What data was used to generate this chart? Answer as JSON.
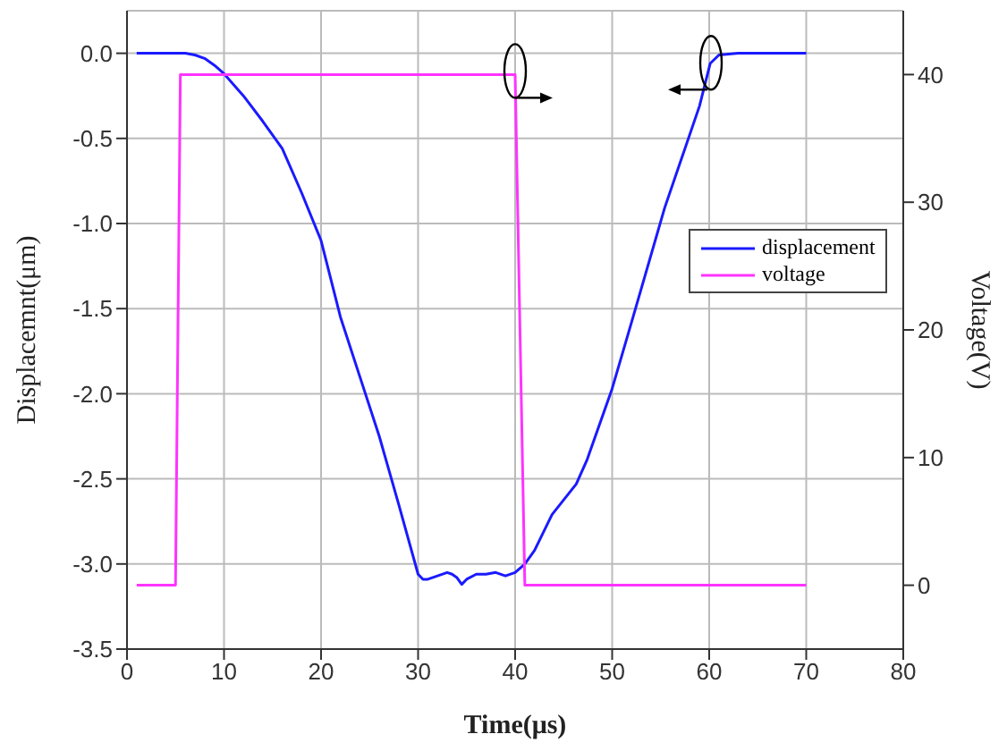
{
  "chart_data": {
    "type": "line",
    "xlabel": "Time(μs)",
    "ylabel": "Displacemnt(μm)",
    "y2label": "Voltage(V)",
    "xlim": [
      0,
      80
    ],
    "xticks": [
      0,
      10,
      20,
      30,
      40,
      50,
      60,
      70,
      80
    ],
    "ylim": [
      -3.5,
      0.25
    ],
    "yticks": [
      {
        "value": -3.5,
        "label": "-3.5"
      },
      {
        "value": -3,
        "label": "-3.0"
      },
      {
        "value": -2.5,
        "label": "-2.5"
      },
      {
        "value": -2,
        "label": "-2.0"
      },
      {
        "value": -1.5,
        "label": "-1.5"
      },
      {
        "value": -1,
        "label": "-1.0"
      },
      {
        "value": -0.5,
        "label": "-0.5"
      },
      {
        "value": 0,
        "label": "0.0"
      }
    ],
    "y2lim": [
      -5,
      45
    ],
    "y2ticks": [
      0,
      10,
      20,
      30,
      40
    ],
    "grid": true,
    "legend": "right",
    "marker": "none",
    "line_style": "solid",
    "series": [
      {
        "name": "displacement",
        "color": "#1a1aff",
        "x": [
          1,
          6,
          7,
          8,
          9,
          10,
          12,
          14,
          16,
          18,
          20,
          22,
          24,
          26,
          28,
          30,
          30.5,
          31,
          32,
          33,
          33.5,
          34,
          34.5,
          35,
          36,
          37,
          38,
          39,
          40,
          41,
          42,
          43.8,
          46.3,
          47.4,
          50,
          52,
          55.4,
          59,
          60.1,
          61,
          63,
          65,
          70
        ],
        "values": [
          0,
          0,
          -0.01,
          -0.03,
          -0.07,
          -0.12,
          -0.25,
          -0.4,
          -0.56,
          -0.82,
          -1.1,
          -1.55,
          -1.9,
          -2.25,
          -2.65,
          -3.06,
          -3.09,
          -3.09,
          -3.07,
          -3.05,
          -3.06,
          -3.08,
          -3.12,
          -3.09,
          -3.06,
          -3.06,
          -3.05,
          -3.07,
          -3.05,
          -3.0,
          -2.92,
          -2.71,
          -2.53,
          -2.39,
          -1.97,
          -1.58,
          -0.91,
          -0.31,
          -0.06,
          -0.01,
          0,
          0,
          0
        ]
      },
      {
        "name": "voltage",
        "color": "#ff33ff",
        "x": [
          1,
          5,
          5.5,
          40,
          41,
          70
        ],
        "values": [
          0,
          0,
          40,
          40,
          0,
          0
        ],
        "axis": "y2"
      }
    ]
  }
}
